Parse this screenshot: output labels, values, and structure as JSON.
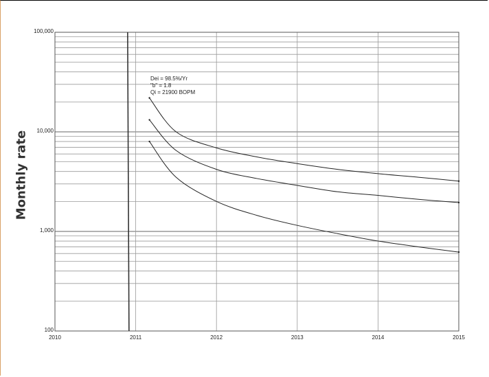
{
  "chart_data": {
    "type": "line",
    "title": "",
    "xlabel": "",
    "ylabel": "Monthly rate",
    "x_scale": "linear",
    "y_scale": "log",
    "xlim": [
      2010,
      2015
    ],
    "ylim": [
      100,
      100000
    ],
    "x_ticks": [
      "2010",
      "2011",
      "2012",
      "2013",
      "2014",
      "2015"
    ],
    "y_ticks": [
      "100",
      "1,000",
      "10,000",
      "100,000"
    ],
    "grid": true,
    "legend": "none",
    "vertical_line_x": 2010.9,
    "annotation": [
      "Dei = 98.5%/Yr",
      "\"b\" = 1.8",
      "Qi = 21900 BOPM"
    ],
    "series": [
      {
        "x": [
          2011.17,
          2011.5,
          2012,
          2012.5,
          2013,
          2013.5,
          2014,
          2014.5,
          2015
        ],
        "values": [
          21900,
          10000,
          6900,
          5600,
          4800,
          4200,
          3800,
          3500,
          3200
        ]
      },
      {
        "x": [
          2011.17,
          2011.5,
          2012,
          2012.5,
          2013,
          2013.5,
          2014,
          2014.5,
          2015
        ],
        "values": [
          13200,
          6500,
          4200,
          3400,
          2900,
          2500,
          2300,
          2100,
          1950
        ]
      },
      {
        "x": [
          2011.17,
          2011.5,
          2012,
          2012.5,
          2013,
          2013.5,
          2014,
          2014.5,
          2015
        ],
        "values": [
          8000,
          3500,
          2000,
          1450,
          1150,
          950,
          800,
          700,
          620
        ]
      }
    ]
  }
}
